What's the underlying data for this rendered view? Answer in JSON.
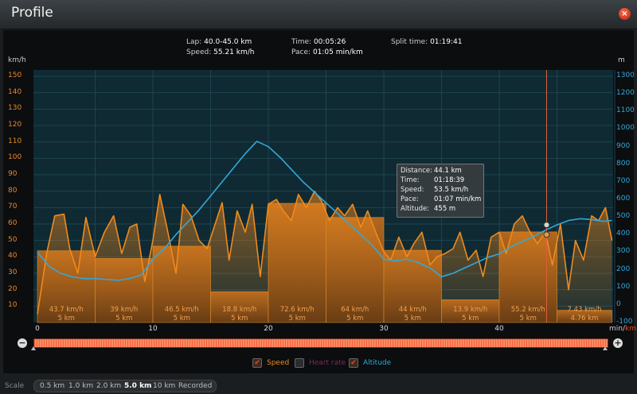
{
  "window": {
    "title": "Profile",
    "close_glyph": "×"
  },
  "header": {
    "lap_label": "Lap:",
    "lap_value": "40.0-45.0 km",
    "speed_label": "Speed:",
    "speed_value": "55.21 km/h",
    "time_label": "Time:",
    "time_value": "00:05:26",
    "pace_label": "Pace:",
    "pace_value": "01:05 min/km",
    "split_label": "Split time:",
    "split_value": "01:19:41"
  },
  "axes": {
    "left_unit": "km/h",
    "right_unit": "m",
    "x_unit_a": "min/",
    "x_unit_b": "km",
    "left_ticks": [
      "150",
      "140",
      "130",
      "120",
      "110",
      "100",
      "90",
      "80",
      "70",
      "60",
      "50",
      "40",
      "30",
      "20",
      "10"
    ],
    "right_ticks": [
      "1300",
      "1200",
      "1100",
      "1000",
      "900",
      "800",
      "700",
      "600",
      "500",
      "400",
      "300",
      "200",
      "100",
      "0",
      "-100"
    ],
    "x_ticks": [
      "0",
      "10",
      "20",
      "30",
      "40"
    ]
  },
  "tooltip": {
    "distance_label": "Distance:",
    "distance_value": "44.1 km",
    "time_label": "Time:",
    "time_value": "01:18:39",
    "speed_label": "Speed:",
    "speed_value": "53.5 km/h",
    "pace_label": "Pace:",
    "pace_value": "01:07 min/km",
    "altitude_label": "Altitude:",
    "altitude_value": "455 m"
  },
  "legend": {
    "speed": "Speed",
    "heart_rate": "Heart rate",
    "altitude": "Altitude"
  },
  "scale": {
    "label": "Scale",
    "options": [
      "0.5 km",
      "1.0 km",
      "2.0 km",
      "5.0 km",
      "10 km",
      "Recorded"
    ],
    "selected": "5.0 km"
  },
  "colors": {
    "speed": "#f08a1e",
    "altitude": "#33a8d8",
    "heart_rate": "#8a2a6a",
    "cursor": "#e0603a"
  },
  "chart_data": {
    "type": "bar",
    "title": "Profile",
    "xlabel": "min/km",
    "ylabel_left": "km/h",
    "ylabel_right": "m",
    "xlim": [
      0,
      51
    ],
    "ylim_left": [
      0,
      150
    ],
    "ylim_right": [
      -100,
      1300
    ],
    "grid": true,
    "laps": [
      {
        "start_km": 0,
        "end_km": 5,
        "speed": 43.7,
        "speed_label": "43.7 km/h",
        "dist_label": "5 km"
      },
      {
        "start_km": 5,
        "end_km": 10,
        "speed": 39.0,
        "speed_label": "39 km/h",
        "dist_label": "5 km"
      },
      {
        "start_km": 10,
        "end_km": 15,
        "speed": 46.5,
        "speed_label": "46.5 km/h",
        "dist_label": "5 km"
      },
      {
        "start_km": 15,
        "end_km": 20,
        "speed": 18.8,
        "speed_label": "18.8 km/h",
        "dist_label": "5 km"
      },
      {
        "start_km": 20,
        "end_km": 25,
        "speed": 72.6,
        "speed_label": "72.6 km/h",
        "dist_label": "5 km"
      },
      {
        "start_km": 25,
        "end_km": 30,
        "speed": 64.0,
        "speed_label": "64 km/h",
        "dist_label": "5 km"
      },
      {
        "start_km": 30,
        "end_km": 35,
        "speed": 44.0,
        "speed_label": "44 km/h",
        "dist_label": "5 km"
      },
      {
        "start_km": 35,
        "end_km": 40,
        "speed": 13.9,
        "speed_label": "13.9 km/h",
        "dist_label": "5 km"
      },
      {
        "start_km": 40,
        "end_km": 45,
        "speed": 55.2,
        "speed_label": "55.2 km/h",
        "dist_label": "5 km"
      },
      {
        "start_km": 45,
        "end_km": 49.76,
        "speed": 7.43,
        "speed_label": "7.43 km/h",
        "dist_label": "4.76 km"
      }
    ],
    "speed_series": {
      "name": "Speed",
      "x": [
        0,
        0.8,
        1.5,
        2.3,
        2.8,
        3.5,
        4.2,
        5,
        5.8,
        6.6,
        7.3,
        8,
        8.6,
        9.3,
        10,
        10.6,
        11.3,
        12,
        12.6,
        13.3,
        14,
        14.7,
        15.3,
        16,
        16.6,
        17.3,
        18,
        18.6,
        19.3,
        20,
        20.7,
        21.3,
        22,
        22.6,
        23.3,
        24,
        24.6,
        25.3,
        26,
        26.6,
        27.3,
        28,
        28.6,
        29.3,
        30,
        30.6,
        31.3,
        32,
        32.6,
        33.3,
        34,
        34.6,
        35.3,
        36,
        36.6,
        37.3,
        38,
        38.6,
        39.3,
        40,
        40.6,
        41.3,
        42,
        42.6,
        43.3,
        44,
        44.6,
        45.3,
        46,
        46.6,
        47.3,
        48,
        48.6,
        49.2,
        49.76
      ],
      "y": [
        5,
        42,
        65,
        66,
        45,
        30,
        64,
        40,
        55,
        65,
        42,
        58,
        60,
        25,
        50,
        78,
        55,
        30,
        72,
        65,
        50,
        45,
        58,
        73,
        38,
        68,
        55,
        72,
        28,
        72,
        75,
        68,
        62,
        78,
        70,
        80,
        74,
        62,
        70,
        65,
        72,
        58,
        68,
        55,
        43,
        38,
        52,
        40,
        48,
        55,
        35,
        40,
        42,
        45,
        55,
        38,
        44,
        28,
        52,
        55,
        42,
        60,
        65,
        56,
        48,
        55,
        35,
        60,
        20,
        50,
        38,
        65,
        62,
        70,
        50
      ]
    },
    "altitude_series": {
      "name": "Altitude",
      "x": [
        0,
        1,
        2,
        3,
        4,
        5,
        6,
        7,
        8,
        9,
        10,
        11,
        12,
        13,
        14,
        15,
        16,
        17,
        18,
        19,
        20,
        21,
        22,
        23,
        24,
        25,
        26,
        27,
        28,
        29,
        30,
        31,
        32,
        33,
        34,
        35,
        36,
        37,
        38,
        39,
        40,
        41,
        42,
        43,
        44,
        45,
        46,
        47,
        48,
        49,
        49.76
      ],
      "y": [
        300,
        220,
        180,
        160,
        150,
        150,
        145,
        140,
        150,
        170,
        260,
        320,
        400,
        470,
        540,
        620,
        700,
        780,
        860,
        930,
        900,
        840,
        770,
        700,
        640,
        580,
        520,
        460,
        400,
        340,
        260,
        250,
        260,
        240,
        210,
        160,
        180,
        210,
        240,
        270,
        290,
        330,
        360,
        390,
        425,
        455,
        480,
        490,
        485,
        475,
        480
      ]
    },
    "cursor": {
      "x_km": 44.1,
      "speed": 53.5,
      "altitude": 455
    }
  }
}
